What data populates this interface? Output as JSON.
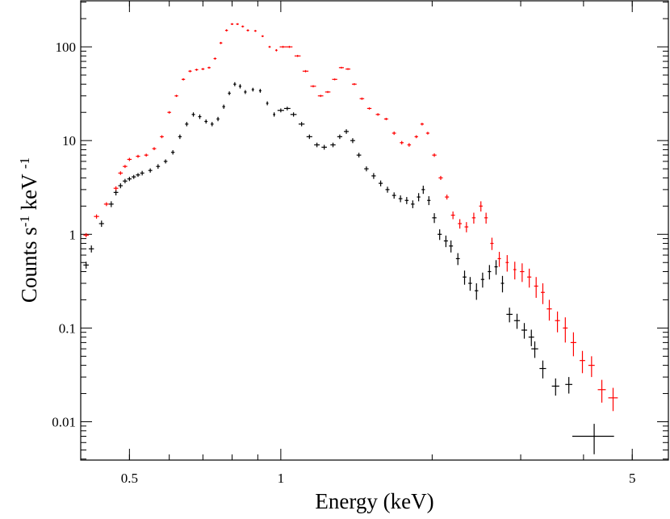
{
  "chart_data": {
    "type": "scatter",
    "xlabel": "Energy (keV)",
    "ylabel": [
      "Counts s",
      "-1",
      " keV ",
      "-1"
    ],
    "xscale": "log",
    "yscale": "log",
    "xlim": [
      0.4,
      5.9
    ],
    "ylim": [
      0.0039,
      310
    ],
    "xticks": [
      0.5,
      1,
      5
    ],
    "yticks": [
      0.01,
      0.1,
      1,
      10,
      100
    ],
    "series": [
      {
        "color": "#000000",
        "x": [
          0.41,
          0.42,
          0.44,
          0.46,
          0.47,
          0.48,
          0.49,
          0.5,
          0.51,
          0.52,
          0.53,
          0.55,
          0.57,
          0.59,
          0.61,
          0.63,
          0.65,
          0.67,
          0.69,
          0.71,
          0.73,
          0.75,
          0.77,
          0.79,
          0.81,
          0.83,
          0.85,
          0.88,
          0.91,
          0.94,
          0.97,
          1.0,
          1.03,
          1.06,
          1.1,
          1.14,
          1.18,
          1.22,
          1.27,
          1.31,
          1.35,
          1.39,
          1.43,
          1.48,
          1.53,
          1.58,
          1.63,
          1.68,
          1.73,
          1.78,
          1.83,
          1.88,
          1.92,
          1.97,
          2.02,
          2.07,
          2.13,
          2.18,
          2.25,
          2.32,
          2.38,
          2.45,
          2.52,
          2.6,
          2.68,
          2.76,
          2.85,
          2.95,
          3.05,
          3.15,
          3.2,
          3.32,
          3.52,
          3.74
        ],
        "values": [
          0.47,
          0.7,
          1.3,
          2.1,
          2.8,
          3.3,
          3.7,
          3.9,
          4.1,
          4.3,
          4.5,
          4.8,
          5.3,
          6.0,
          7.5,
          11,
          15,
          19,
          18,
          16,
          15,
          17,
          23,
          32,
          40,
          38,
          33,
          35,
          34,
          25,
          19,
          21,
          22,
          19,
          15,
          11,
          9,
          8.5,
          9,
          11,
          12.5,
          10,
          7,
          5,
          4.2,
          3.5,
          3.0,
          2.6,
          2.4,
          2.3,
          2.1,
          2.5,
          3.0,
          2.3,
          1.5,
          1.0,
          0.85,
          0.75,
          0.55,
          0.35,
          0.3,
          0.25,
          0.33,
          0.4,
          0.45,
          0.3,
          0.14,
          0.12,
          0.095,
          0.08,
          0.06,
          0.037,
          0.024,
          0.025
        ],
        "xerr": [
          0.005,
          0.005,
          0.005,
          0.005,
          0.005,
          0.005,
          0.005,
          0.005,
          0.005,
          0.005,
          0.005,
          0.005,
          0.005,
          0.005,
          0.005,
          0.005,
          0.005,
          0.005,
          0.005,
          0.005,
          0.005,
          0.005,
          0.005,
          0.005,
          0.005,
          0.005,
          0.005,
          0.005,
          0.005,
          0.005,
          0.005,
          0.015,
          0.015,
          0.015,
          0.015,
          0.015,
          0.015,
          0.015,
          0.015,
          0.015,
          0.015,
          0.015,
          0.015,
          0.015,
          0.015,
          0.015,
          0.015,
          0.015,
          0.015,
          0.015,
          0.015,
          0.015,
          0.015,
          0.015,
          0.02,
          0.02,
          0.02,
          0.02,
          0.02,
          0.02,
          0.02,
          0.02,
          0.02,
          0.02,
          0.02,
          0.02,
          0.04,
          0.04,
          0.04,
          0.04,
          0.05,
          0.05,
          0.06,
          0.06
        ],
        "yerr": [
          0.04,
          0.06,
          0.1,
          0.15,
          0.2,
          0.2,
          0.2,
          0.2,
          0.2,
          0.2,
          0.25,
          0.25,
          0.3,
          0.3,
          0.4,
          0.6,
          0.8,
          1,
          1,
          0.8,
          0.8,
          0.9,
          1.2,
          1.5,
          2,
          2,
          1.6,
          1.6,
          1.6,
          1.2,
          1,
          1,
          1,
          1,
          0.8,
          0.6,
          0.5,
          0.5,
          0.5,
          0.6,
          0.7,
          0.6,
          0.4,
          0.3,
          0.3,
          0.25,
          0.22,
          0.2,
          0.2,
          0.2,
          0.2,
          0.25,
          0.3,
          0.25,
          0.18,
          0.13,
          0.12,
          0.11,
          0.08,
          0.06,
          0.05,
          0.05,
          0.06,
          0.07,
          0.08,
          0.06,
          0.025,
          0.022,
          0.018,
          0.016,
          0.012,
          0.008,
          0.005,
          0.005
        ]
      },
      {
        "color": "#ff0000",
        "x": [
          0.41,
          0.43,
          0.45,
          0.47,
          0.48,
          0.49,
          0.5,
          0.52,
          0.54,
          0.56,
          0.58,
          0.6,
          0.62,
          0.64,
          0.66,
          0.68,
          0.7,
          0.72,
          0.74,
          0.76,
          0.78,
          0.8,
          0.82,
          0.84,
          0.86,
          0.89,
          0.92,
          0.95,
          0.98,
          1.01,
          1.04,
          1.08,
          1.12,
          1.16,
          1.2,
          1.24,
          1.28,
          1.32,
          1.36,
          1.4,
          1.45,
          1.5,
          1.56,
          1.62,
          1.68,
          1.74,
          1.8,
          1.86,
          1.91,
          1.96,
          2.02,
          2.08,
          2.14,
          2.2,
          2.27,
          2.34,
          2.42,
          2.5,
          2.56,
          2.63,
          2.72,
          2.82,
          2.92,
          3.02,
          3.12,
          3.22,
          3.32,
          3.42,
          3.55,
          3.68,
          3.82,
          3.98,
          4.15,
          4.35,
          4.58
        ],
        "values": [
          0.98,
          1.55,
          2.1,
          3.1,
          4.5,
          5.3,
          6.3,
          6.8,
          7.0,
          8.2,
          11,
          20,
          30,
          45,
          55,
          57,
          58,
          60,
          75,
          110,
          150,
          175,
          175,
          165,
          150,
          148,
          130,
          100,
          92,
          100,
          100,
          80,
          55,
          38,
          30,
          33,
          45,
          60,
          58,
          40,
          28,
          22,
          19,
          17,
          12,
          9.5,
          9,
          11,
          15,
          12,
          7,
          4,
          2.5,
          1.6,
          1.3,
          1.2,
          1.5,
          2.0,
          1.5,
          0.8,
          0.55,
          0.5,
          0.42,
          0.4,
          0.35,
          0.28,
          0.24,
          0.16,
          0.12,
          0.1,
          0.07,
          0.045,
          0.04,
          0.022,
          0.018
        ],
        "xerr": [
          0.005,
          0.005,
          0.005,
          0.005,
          0.005,
          0.005,
          0.005,
          0.005,
          0.005,
          0.005,
          0.005,
          0.005,
          0.005,
          0.005,
          0.005,
          0.005,
          0.005,
          0.005,
          0.005,
          0.005,
          0.005,
          0.005,
          0.005,
          0.005,
          0.005,
          0.005,
          0.005,
          0.005,
          0.005,
          0.015,
          0.015,
          0.015,
          0.015,
          0.015,
          0.015,
          0.015,
          0.015,
          0.015,
          0.015,
          0.015,
          0.015,
          0.015,
          0.015,
          0.015,
          0.015,
          0.015,
          0.015,
          0.015,
          0.015,
          0.015,
          0.02,
          0.02,
          0.02,
          0.02,
          0.02,
          0.02,
          0.02,
          0.02,
          0.02,
          0.02,
          0.02,
          0.02,
          0.02,
          0.03,
          0.03,
          0.03,
          0.03,
          0.04,
          0.04,
          0.04,
          0.05,
          0.05,
          0.06,
          0.08,
          0.1
        ],
        "yerr": [
          0.05,
          0.08,
          0.1,
          0.15,
          0.2,
          0.2,
          0.25,
          0.25,
          0.25,
          0.3,
          0.4,
          0.6,
          0.8,
          1.2,
          1.5,
          1.5,
          1.5,
          1.5,
          2,
          3,
          4,
          4,
          4,
          4,
          4,
          3.5,
          3,
          2.5,
          2.5,
          2.5,
          2.5,
          2,
          1.5,
          1,
          0.8,
          0.8,
          1,
          1.3,
          1.3,
          1,
          0.8,
          0.6,
          0.6,
          0.5,
          0.5,
          0.4,
          0.4,
          0.4,
          0.5,
          0.4,
          0.3,
          0.2,
          0.15,
          0.15,
          0.15,
          0.15,
          0.2,
          0.25,
          0.2,
          0.12,
          0.1,
          0.1,
          0.09,
          0.09,
          0.08,
          0.07,
          0.06,
          0.04,
          0.03,
          0.03,
          0.02,
          0.012,
          0.01,
          0.006,
          0.005
        ]
      },
      {
        "color": "#000000",
        "x": [
          4.2
        ],
        "values": [
          0.007
        ],
        "xerr": [
          0.4
        ],
        "yerr": [
          0.0025
        ]
      }
    ]
  }
}
